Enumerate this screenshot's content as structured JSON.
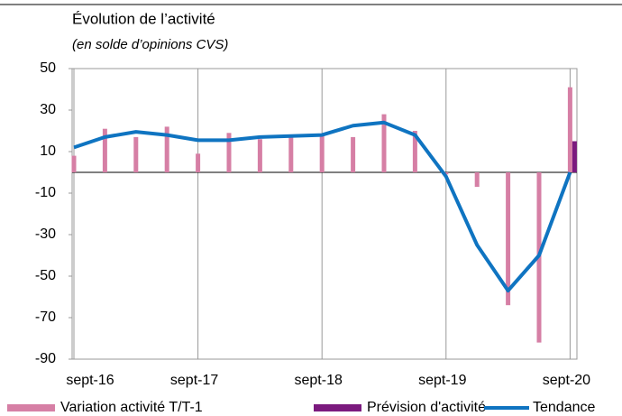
{
  "chart_data": {
    "type": "combo",
    "title": "Évolution de l’activité",
    "subtitle": "(en solde d’opinions CVS)",
    "categories": [
      "sept-16",
      null,
      null,
      null,
      "sept-17",
      null,
      null,
      null,
      "sept-18",
      null,
      null,
      null,
      "sept-19",
      null,
      null,
      null,
      "sept-20"
    ],
    "series": [
      {
        "name": "Variation activité T/T-1",
        "type": "bar",
        "color": "#d67fa5",
        "values": [
          8,
          21,
          17,
          22,
          9,
          19,
          16,
          17,
          18,
          17,
          28,
          20,
          -1,
          -7,
          -64,
          -82,
          41
        ]
      },
      {
        "name": "Prévision d'activité",
        "type": "bar",
        "color": "#7b1a7e",
        "values": [
          null,
          null,
          null,
          null,
          null,
          null,
          null,
          null,
          null,
          null,
          null,
          null,
          null,
          null,
          null,
          null,
          15
        ]
      },
      {
        "name": "Tendance",
        "type": "line",
        "color": "#0f74c1",
        "values": [
          12,
          17,
          19.5,
          18,
          15.5,
          15.5,
          17,
          17.5,
          18,
          22.5,
          24,
          18,
          -2,
          -35,
          -57,
          -40,
          0
        ]
      }
    ],
    "ylim": [
      -90,
      50
    ],
    "yticks": [
      -90,
      -70,
      -50,
      -30,
      -10,
      10,
      30,
      50
    ]
  }
}
